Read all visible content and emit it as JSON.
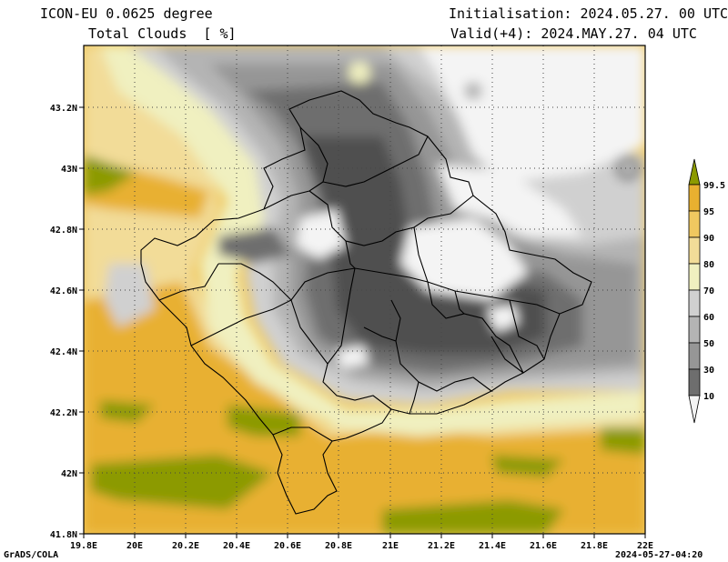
{
  "header": {
    "model": "ICON-EU 0.0625 degree",
    "variable": "Total Clouds  [ %]",
    "initialisation": "Initialisation: 2024.05.27. 00 UTC",
    "valid": "Valid(+4): 2024.MAY.27. 04 UTC"
  },
  "footer": {
    "left": "GrADS/COLA",
    "right": "2024-05-27-04:20"
  },
  "map": {
    "lon_ticks": [
      "19.8E",
      "20E",
      "20.2E",
      "20.4E",
      "20.6E",
      "20.8E",
      "21E",
      "21.2E",
      "21.4E",
      "21.6E",
      "21.8E",
      "22E"
    ],
    "lat_ticks": [
      "43.2N",
      "43N",
      "42.8N",
      "42.6N",
      "42.4N",
      "42.2N",
      "42N",
      "41.8N"
    ]
  },
  "colorbar": {
    "labels": [
      "99.5",
      "95",
      "90",
      "80",
      "70",
      "60",
      "50",
      "30",
      "10"
    ],
    "colors": [
      "#8c9a00",
      "#e8b030",
      "#f0c860",
      "#f2dc98",
      "#f0f0c0",
      "#d0d0d0",
      "#b4b4b4",
      "#969696",
      "#6e6e6e",
      "#505050",
      "#f4f4f4"
    ]
  }
}
